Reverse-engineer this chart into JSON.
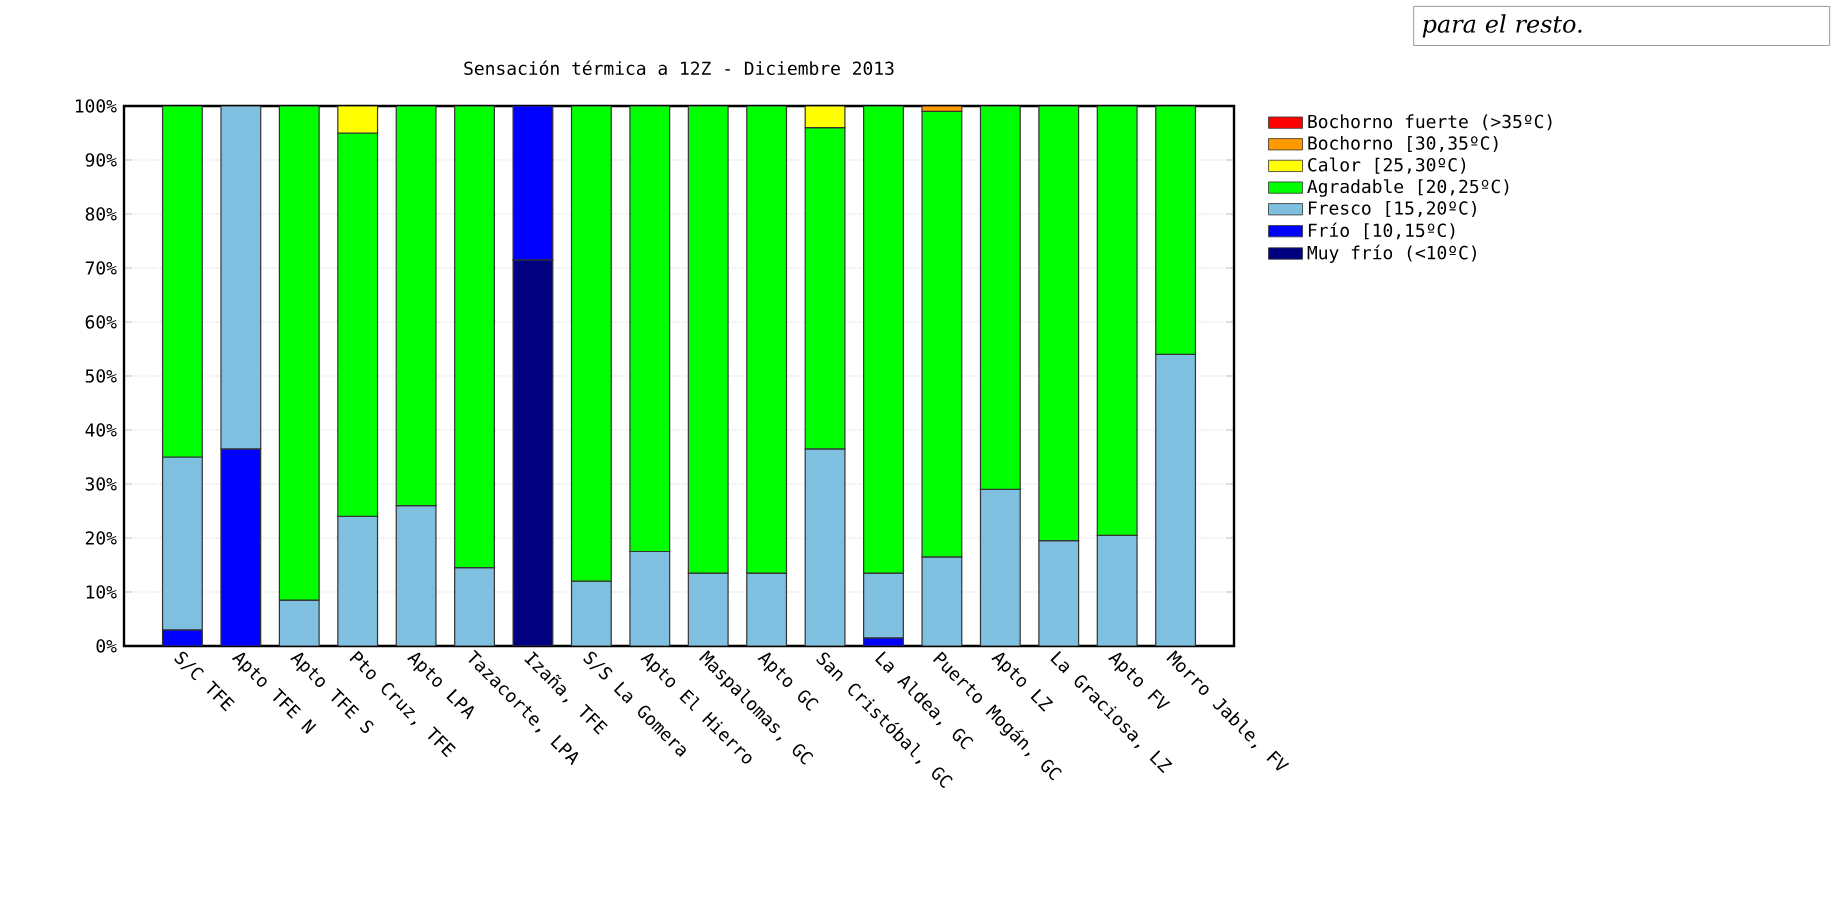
{
  "chart_data": {
    "type": "bar",
    "stacked": true,
    "title": "Sensación térmica a 12Z  -  Diciembre 2013",
    "categories": [
      "S/C TFE",
      "Apto TFE N",
      "Apto TFE S",
      "Pto Cruz, TFE",
      "Apto LPA",
      "Tazacorte, LPA",
      "Izaña, TFE",
      "S/S La Gomera",
      "Apto El Hierro",
      "Maspalomas, GC",
      "Apto GC",
      "San Cristóbal, GC",
      "La Aldea, GC",
      "Puerto Mogán, GC",
      "Apto LZ",
      "La Graciosa, LZ",
      "Apto FV",
      "Morro Jable, FV"
    ],
    "series": [
      {
        "name": "Muy frío (<10ºC)",
        "color": "#000080",
        "values": [
          0,
          0,
          0,
          0,
          0,
          0,
          71.5,
          0,
          0,
          0,
          0,
          0,
          0,
          0,
          0,
          0,
          0,
          0
        ]
      },
      {
        "name": "Frío [10,15ºC)",
        "color": "#0000ff",
        "values": [
          3,
          36.5,
          0,
          0,
          0,
          0,
          28.5,
          0,
          0,
          0,
          0,
          0,
          1.5,
          0,
          0,
          0,
          0,
          0
        ]
      },
      {
        "name": "Fresco [15,20ºC)",
        "color": "#7fbfdf",
        "values": [
          32,
          63.5,
          8.5,
          24,
          26,
          14.5,
          0,
          12,
          17.5,
          13.5,
          13.5,
          36.5,
          12,
          16.5,
          29,
          19.5,
          20.5,
          54
        ]
      },
      {
        "name": "Agradable [20,25ºC)",
        "color": "#00ff00",
        "values": [
          65,
          0,
          91.5,
          71,
          74,
          85.5,
          0,
          88,
          82.5,
          86.5,
          86.5,
          59.5,
          86.5,
          82.5,
          71,
          80.5,
          79.5,
          46
        ]
      },
      {
        "name": "Calor [25,30ºC)",
        "color": "#ffff00",
        "values": [
          0,
          0,
          0,
          5,
          0,
          0,
          0,
          0,
          0,
          0,
          0,
          4,
          0,
          0,
          0,
          0,
          0,
          0
        ]
      },
      {
        "name": "Bochorno [30,35ºC)",
        "color": "#ff9900",
        "values": [
          0,
          0,
          0,
          0,
          0,
          0,
          0,
          0,
          0,
          0,
          0,
          0,
          0,
          1,
          0,
          0,
          0,
          0
        ]
      },
      {
        "name": "Bochorno fuerte (>35ºC)",
        "color": "#ff0000",
        "values": [
          0,
          0,
          0,
          0,
          0,
          0,
          0,
          0,
          0,
          0,
          0,
          0,
          0,
          0,
          0,
          0,
          0,
          0
        ]
      }
    ],
    "ylim": [
      0,
      100
    ],
    "yticks": [
      {
        "value": 0,
        "label": "0%"
      },
      {
        "value": 10,
        "label": "10%"
      },
      {
        "value": 20,
        "label": "20%"
      },
      {
        "value": 30,
        "label": "30%"
      },
      {
        "value": 40,
        "label": "40%"
      },
      {
        "value": 50,
        "label": "50%"
      },
      {
        "value": 60,
        "label": "60%"
      },
      {
        "value": 70,
        "label": "70%"
      },
      {
        "value": 80,
        "label": "80%"
      },
      {
        "value": 90,
        "label": "90%"
      },
      {
        "value": 100,
        "label": "100%"
      }
    ],
    "grid": "y",
    "legend": "right",
    "annotations": [
      "para el resto."
    ]
  }
}
